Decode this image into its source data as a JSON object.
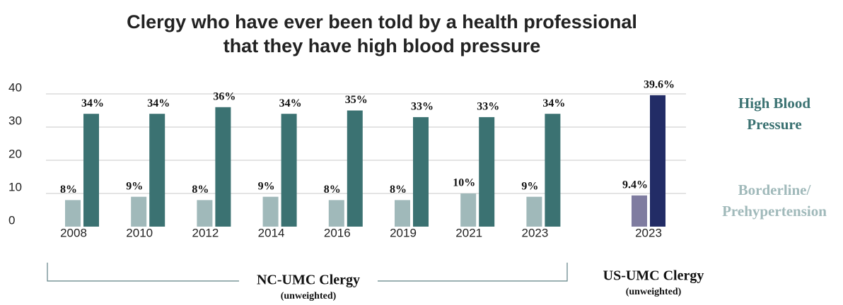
{
  "chart_data": {
    "type": "bar",
    "title": [
      "Clergy who have ever been told by a health professional",
      "that they have high blood pressure"
    ],
    "categories": [
      "2008",
      "2010",
      "2012",
      "2014",
      "2016",
      "2019",
      "2021",
      "2023",
      "2023"
    ],
    "series": [
      {
        "name": "Borderline/ Prehypertension",
        "color": "#a0b9ba",
        "colors": [
          "#a0b9ba",
          "#a0b9ba",
          "#a0b9ba",
          "#a0b9ba",
          "#a0b9ba",
          "#a0b9ba",
          "#a0b9ba",
          "#a0b9ba",
          "#7f7ca0"
        ],
        "values": [
          8,
          9,
          8,
          9,
          8,
          8,
          10,
          9,
          9.4
        ],
        "value_labels": [
          "8%",
          "9%",
          "8%",
          "9%",
          "8%",
          "8%",
          "10%",
          "9%",
          "9.4%"
        ]
      },
      {
        "name": "High Blood Pressure",
        "color": "#3b7272",
        "colors": [
          "#3b7272",
          "#3b7272",
          "#3b7272",
          "#3b7272",
          "#3b7272",
          "#3b7272",
          "#3b7272",
          "#3b7272",
          "#222c66"
        ],
        "values": [
          34,
          34,
          36,
          34,
          35,
          33,
          33,
          34,
          39.6
        ],
        "value_labels": [
          "34%",
          "34%",
          "36%",
          "34%",
          "35%",
          "33%",
          "33%",
          "34%",
          "39.6%"
        ]
      }
    ],
    "groups": [
      {
        "label": "NC-UMC Clergy",
        "note": "(unweighted)"
      },
      {
        "label": "US-UMC Clergy",
        "note": "(unweighted)"
      }
    ],
    "ylim": [
      0,
      40
    ],
    "yticks": [
      0,
      10,
      20,
      30,
      40
    ],
    "grid": true,
    "legend": "right"
  }
}
